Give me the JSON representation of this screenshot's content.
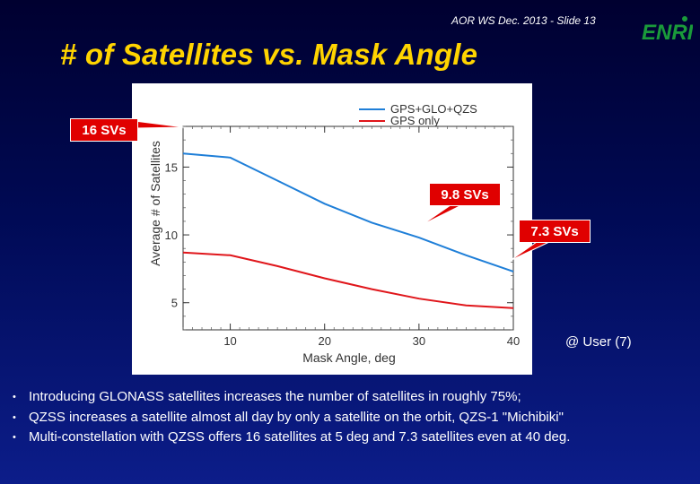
{
  "header": {
    "slide_ref": "AOR WS Dec. 2013 - Slide 13",
    "logo_text": "ENRI",
    "logo_color": "#1a9a3a"
  },
  "title": "# of Satellites vs. Mask Angle",
  "chart_data": {
    "type": "line",
    "xlabel": "Mask Angle, deg",
    "ylabel": "Average # of Satellites",
    "xlim": [
      5,
      40
    ],
    "ylim": [
      3,
      18
    ],
    "xticks": [
      10,
      20,
      30,
      40
    ],
    "yticks": [
      5,
      10,
      15
    ],
    "grid": false,
    "legend_position": "top-right",
    "series": [
      {
        "name": "GPS+GLO+QZS",
        "color": "#1f7fd8",
        "x": [
          5,
          10,
          15,
          20,
          25,
          30,
          35,
          40
        ],
        "y": [
          16.0,
          15.7,
          14.0,
          12.3,
          10.9,
          9.8,
          8.5,
          7.3
        ]
      },
      {
        "name": "GPS only",
        "color": "#e0161b",
        "x": [
          5,
          10,
          15,
          20,
          25,
          30,
          35,
          40
        ],
        "y": [
          8.7,
          8.5,
          7.7,
          6.8,
          6.0,
          5.3,
          4.8,
          4.6
        ]
      }
    ]
  },
  "callouts": {
    "c16": "16 SVs",
    "c98": "9.8 SVs",
    "c73": "7.3 SVs"
  },
  "user_note": "@ User (7)",
  "bullets": [
    "Introducing GLONASS satellites increases the number of satellites in roughly 75%;",
    "QZSS increases a satellite almost all day by only a satellite on the orbit, QZS-1 \"Michibiki\"",
    "Multi-constellation with QZSS offers 16 satellites at 5 deg and 7.3 satellites even at 40 deg."
  ],
  "bullet_symbol": "•"
}
